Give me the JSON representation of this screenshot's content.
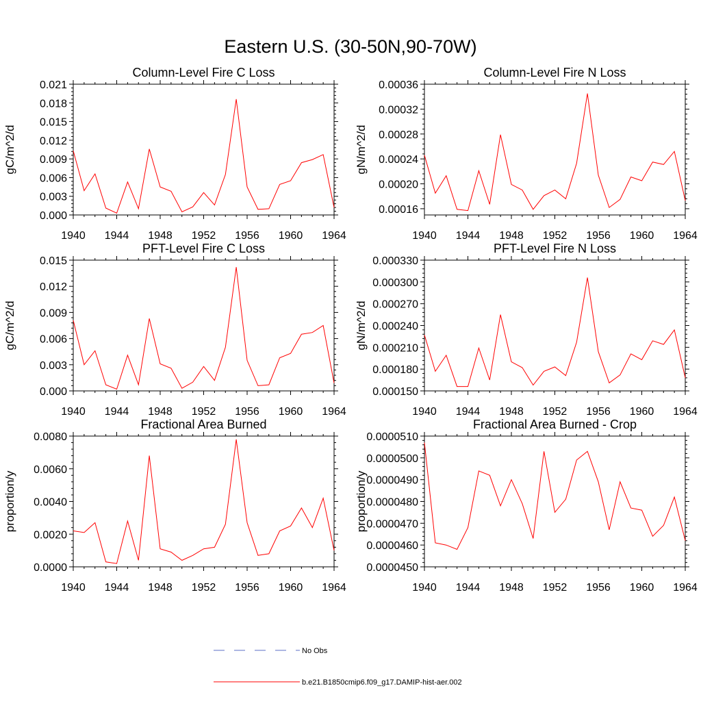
{
  "title": "Eastern U.S. (30-50N,90-70W)",
  "legend": [
    {
      "label": "No Obs",
      "color": "#5b6ec7",
      "dash": true
    },
    {
      "label": "b.e21.B1850cmip6.f09_g17.DAMIP-hist-aer.002",
      "color": "#ff0000",
      "dash": false
    }
  ],
  "chart_data": [
    {
      "type": "line",
      "title": "Column-Level Fire C Loss",
      "ylabel": "gC/m^2/d",
      "xlabel": "",
      "xlim": [
        1940,
        1964
      ],
      "ylim": [
        0,
        0.021
      ],
      "xticks": [
        1940,
        1944,
        1948,
        1952,
        1956,
        1960,
        1964
      ],
      "xtick_labels": [
        "1940",
        "1944",
        "1948",
        "1952",
        "1956",
        "1960",
        "1964"
      ],
      "yticks": [
        0,
        0.003,
        0.006,
        0.009,
        0.012,
        0.015,
        0.018,
        0.021
      ],
      "ytick_labels": [
        "0.000",
        "0.003",
        "0.006",
        "0.009",
        "0.012",
        "0.015",
        "0.018",
        "0.021"
      ],
      "grid": false,
      "x": [
        1940,
        1941,
        1942,
        1943,
        1944,
        1945,
        1946,
        1947,
        1948,
        1949,
        1950,
        1951,
        1952,
        1953,
        1954,
        1955,
        1956,
        1957,
        1958,
        1959,
        1960,
        1961,
        1962,
        1963,
        1964
      ],
      "series": [
        {
          "name": "b.e21.B1850cmip6.f09_g17.DAMIP-hist-aer.002",
          "color": "#ff0000",
          "values": [
            0.0103,
            0.0039,
            0.0066,
            0.0011,
            0.0003,
            0.0053,
            0.001,
            0.0106,
            0.0045,
            0.0038,
            0.0005,
            0.0013,
            0.0036,
            0.0016,
            0.0065,
            0.0186,
            0.0045,
            0.0009,
            0.001,
            0.0049,
            0.0055,
            0.0084,
            0.0089,
            0.0097,
            0.0012
          ]
        }
      ]
    },
    {
      "type": "line",
      "title": "Column-Level Fire N Loss",
      "ylabel": "gN/m^2/d",
      "xlabel": "",
      "xlim": [
        1940,
        1964
      ],
      "ylim": [
        0.00015,
        0.00036
      ],
      "xticks": [
        1940,
        1944,
        1948,
        1952,
        1956,
        1960,
        1964
      ],
      "xtick_labels": [
        "1940",
        "1944",
        "1948",
        "1952",
        "1956",
        "1960",
        "1964"
      ],
      "yticks": [
        0.00016,
        0.0002,
        0.00024,
        0.00028,
        0.00032,
        0.00036
      ],
      "ytick_labels": [
        "0.00016",
        "0.00020",
        "0.00024",
        "0.00028",
        "0.00032",
        "0.00036"
      ],
      "grid": false,
      "x": [
        1940,
        1941,
        1942,
        1943,
        1944,
        1945,
        1946,
        1947,
        1948,
        1949,
        1950,
        1951,
        1952,
        1953,
        1954,
        1955,
        1956,
        1957,
        1958,
        1959,
        1960,
        1961,
        1962,
        1963,
        1964
      ],
      "series": [
        {
          "name": "b.e21.B1850cmip6.f09_g17.DAMIP-hist-aer.002",
          "color": "#ff0000",
          "values": [
            0.000246,
            0.000185,
            0.000213,
            0.000159,
            0.000157,
            0.000221,
            0.000167,
            0.000279,
            0.000199,
            0.00019,
            0.000159,
            0.000181,
            0.00019,
            0.000176,
            0.000233,
            0.000345,
            0.000214,
            0.000162,
            0.000175,
            0.000211,
            0.000205,
            0.000235,
            0.000231,
            0.000252,
            0.000173
          ]
        }
      ]
    },
    {
      "type": "line",
      "title": "PFT-Level Fire C Loss",
      "ylabel": "gC/m^2/d",
      "xlabel": "",
      "xlim": [
        1940,
        1964
      ],
      "ylim": [
        0,
        0.015
      ],
      "xticks": [
        1940,
        1944,
        1948,
        1952,
        1956,
        1960,
        1964
      ],
      "xtick_labels": [
        "1940",
        "1944",
        "1948",
        "1952",
        "1956",
        "1960",
        "1964"
      ],
      "yticks": [
        0,
        0.003,
        0.006,
        0.009,
        0.012,
        0.015
      ],
      "ytick_labels": [
        "0.000",
        "0.003",
        "0.006",
        "0.009",
        "0.012",
        "0.015"
      ],
      "grid": false,
      "x": [
        1940,
        1941,
        1942,
        1943,
        1944,
        1945,
        1946,
        1947,
        1948,
        1949,
        1950,
        1951,
        1952,
        1953,
        1954,
        1955,
        1956,
        1957,
        1958,
        1959,
        1960,
        1961,
        1962,
        1963,
        1964
      ],
      "series": [
        {
          "name": "b.e21.B1850cmip6.f09_g17.DAMIP-hist-aer.002",
          "color": "#ff0000",
          "values": [
            0.0081,
            0.003,
            0.0046,
            0.0007,
            0.0002,
            0.0041,
            0.0007,
            0.0083,
            0.0031,
            0.0026,
            0.0003,
            0.001,
            0.0028,
            0.0012,
            0.005,
            0.0142,
            0.0035,
            0.0006,
            0.0007,
            0.0038,
            0.0043,
            0.0065,
            0.0067,
            0.0075,
            0.0009
          ]
        }
      ]
    },
    {
      "type": "line",
      "title": "PFT-Level Fire N Loss",
      "ylabel": "gN/m^2/d",
      "xlabel": "",
      "xlim": [
        1940,
        1964
      ],
      "ylim": [
        0.00015,
        0.00033
      ],
      "xticks": [
        1940,
        1944,
        1948,
        1952,
        1956,
        1960,
        1964
      ],
      "xtick_labels": [
        "1940",
        "1944",
        "1948",
        "1952",
        "1956",
        "1960",
        "1964"
      ],
      "yticks": [
        0.00015,
        0.00018,
        0.00021,
        0.00024,
        0.00027,
        0.0003,
        0.00033
      ],
      "ytick_labels": [
        "0.000150",
        "0.000180",
        "0.000210",
        "0.000240",
        "0.000270",
        "0.000300",
        "0.000330"
      ],
      "grid": false,
      "x": [
        1940,
        1941,
        1942,
        1943,
        1944,
        1945,
        1946,
        1947,
        1948,
        1949,
        1950,
        1951,
        1952,
        1953,
        1954,
        1955,
        1956,
        1957,
        1958,
        1959,
        1960,
        1961,
        1962,
        1963,
        1964
      ],
      "series": [
        {
          "name": "b.e21.B1850cmip6.f09_g17.DAMIP-hist-aer.002",
          "color": "#ff0000",
          "values": [
            0.000227,
            0.000177,
            0.000199,
            0.000156,
            0.000156,
            0.000209,
            0.000165,
            0.000255,
            0.00019,
            0.000182,
            0.000158,
            0.000177,
            0.000183,
            0.000171,
            0.000217,
            0.000306,
            0.000204,
            0.000161,
            0.000172,
            0.000201,
            0.000193,
            0.000219,
            0.000214,
            0.000234,
            0.000168
          ]
        }
      ]
    },
    {
      "type": "line",
      "title": "Fractional Area Burned",
      "ylabel": "proportion/y",
      "xlabel": "",
      "xlim": [
        1940,
        1964
      ],
      "ylim": [
        0,
        0.008
      ],
      "xticks": [
        1940,
        1944,
        1948,
        1952,
        1956,
        1960,
        1964
      ],
      "xtick_labels": [
        "1940",
        "1944",
        "1948",
        "1952",
        "1956",
        "1960",
        "1964"
      ],
      "yticks": [
        0,
        0.002,
        0.004,
        0.006,
        0.008
      ],
      "ytick_labels": [
        "0.0000",
        "0.0020",
        "0.0040",
        "0.0060",
        "0.0080"
      ],
      "grid": false,
      "x": [
        1940,
        1941,
        1942,
        1943,
        1944,
        1945,
        1946,
        1947,
        1948,
        1949,
        1950,
        1951,
        1952,
        1953,
        1954,
        1955,
        1956,
        1957,
        1958,
        1959,
        1960,
        1961,
        1962,
        1963,
        1964
      ],
      "series": [
        {
          "name": "b.e21.B1850cmip6.f09_g17.DAMIP-hist-aer.002",
          "color": "#ff0000",
          "values": [
            0.0022,
            0.0021,
            0.0027,
            0.0003,
            0.0002,
            0.0028,
            0.0004,
            0.0068,
            0.0011,
            0.0009,
            0.0004,
            0.0007,
            0.0011,
            0.0012,
            0.0026,
            0.0078,
            0.0027,
            0.0007,
            0.0008,
            0.0022,
            0.0025,
            0.0036,
            0.0024,
            0.0042,
            0.001
          ]
        }
      ]
    },
    {
      "type": "line",
      "title": "Fractional Area Burned - Crop",
      "ylabel": "proportion/y",
      "xlabel": "",
      "xlim": [
        1940,
        1964
      ],
      "ylim": [
        4.5e-05,
        5.1e-05
      ],
      "xticks": [
        1940,
        1944,
        1948,
        1952,
        1956,
        1960,
        1964
      ],
      "xtick_labels": [
        "1940",
        "1944",
        "1948",
        "1952",
        "1956",
        "1960",
        "1964"
      ],
      "yticks": [
        4.5e-05,
        4.6e-05,
        4.7e-05,
        4.8e-05,
        4.9e-05,
        5e-05,
        5.1e-05
      ],
      "ytick_labels": [
        "0.0000450",
        "0.0000460",
        "0.0000470",
        "0.0000480",
        "0.0000490",
        "0.0000500",
        "0.0000510"
      ],
      "grid": false,
      "x": [
        1940,
        1941,
        1942,
        1943,
        1944,
        1945,
        1946,
        1947,
        1948,
        1949,
        1950,
        1951,
        1952,
        1953,
        1954,
        1955,
        1956,
        1957,
        1958,
        1959,
        1960,
        1961,
        1962,
        1963,
        1964
      ],
      "series": [
        {
          "name": "b.e21.B1850cmip6.f09_g17.DAMIP-hist-aer.002",
          "color": "#ff0000",
          "values": [
            5.07e-05,
            4.61e-05,
            4.6e-05,
            4.58e-05,
            4.68e-05,
            4.94e-05,
            4.92e-05,
            4.78e-05,
            4.9e-05,
            4.79e-05,
            4.63e-05,
            5.03e-05,
            4.75e-05,
            4.81e-05,
            4.99e-05,
            5.03e-05,
            4.89e-05,
            4.67e-05,
            4.89e-05,
            4.77e-05,
            4.76e-05,
            4.64e-05,
            4.69e-05,
            4.82e-05,
            4.62e-05
          ]
        }
      ]
    }
  ]
}
